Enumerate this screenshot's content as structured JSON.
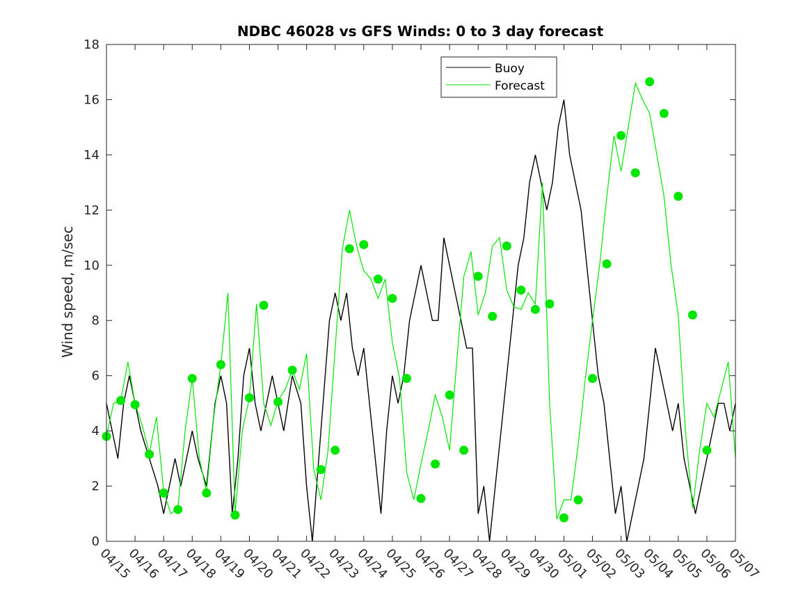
{
  "chart_data": {
    "type": "line",
    "title": "NDBC 46028 vs GFS Winds: 0 to 3 day forecast",
    "xlabel": "",
    "ylabel": "Wind speed, m/sec",
    "ylim": [
      0,
      18
    ],
    "yticks": [
      0,
      2,
      4,
      6,
      8,
      10,
      12,
      14,
      16,
      18
    ],
    "x_tick_labels": [
      "04/15",
      "04/16",
      "04/17",
      "04/18",
      "04/19",
      "04/20",
      "04/21",
      "04/22",
      "04/23",
      "04/24",
      "04/25",
      "04/26",
      "04/27",
      "04/28",
      "04/29",
      "04/30",
      "05/01",
      "05/02",
      "05/03",
      "05/04",
      "05/05",
      "05/06",
      "05/07"
    ],
    "xlim_days": [
      0,
      22
    ],
    "grid": false,
    "legend_position": "top-center",
    "legend": [
      {
        "name": "Buoy",
        "color": "#000000"
      },
      {
        "name": "Forecast",
        "color": "#00e600"
      }
    ],
    "colors": {
      "buoy": "#000000",
      "forecast": "#00e600"
    },
    "series": [
      {
        "name": "Buoy",
        "x": [
          0,
          0.2,
          0.4,
          0.6,
          0.8,
          1.0,
          1.2,
          1.5,
          1.8,
          2.0,
          2.2,
          2.4,
          2.6,
          2.8,
          3.0,
          3.2,
          3.5,
          3.8,
          4.0,
          4.2,
          4.4,
          4.6,
          4.8,
          5.0,
          5.2,
          5.4,
          5.6,
          5.8,
          6.0,
          6.2,
          6.5,
          6.8,
          7.0,
          7.2,
          7.5,
          7.8,
          8.0,
          8.2,
          8.4,
          8.6,
          8.8,
          9.0,
          9.2,
          9.4,
          9.6,
          9.8,
          10.0,
          10.2,
          10.4,
          10.6,
          10.8,
          11.0,
          11.2,
          11.4,
          11.6,
          11.8,
          12.0,
          12.2,
          12.4,
          12.6,
          12.8,
          13.0,
          13.2,
          13.4,
          13.6,
          13.8,
          14.0,
          14.2,
          14.4,
          14.6,
          14.8,
          15.0,
          15.2,
          15.4,
          15.6,
          15.8,
          16.0,
          16.2,
          16.4,
          16.6,
          16.8,
          17.0,
          17.2,
          17.4,
          17.6,
          17.8,
          18.0,
          18.2,
          18.4,
          18.6,
          18.8,
          19.0,
          19.2,
          19.4,
          19.6,
          19.8,
          20.0,
          20.2,
          20.4,
          20.6,
          20.8,
          21.0,
          21.2,
          21.4,
          21.6,
          21.8,
          22.0
        ],
        "values": [
          5,
          4,
          3,
          5,
          6,
          5,
          4,
          3,
          2,
          1,
          2,
          3,
          2,
          3,
          4,
          3,
          2,
          5,
          6,
          5,
          1,
          3,
          6,
          7,
          5,
          4,
          5,
          6,
          5,
          4,
          6,
          5,
          2,
          0,
          4,
          8,
          9,
          8,
          9,
          7,
          6,
          7,
          5,
          3,
          1,
          4,
          6,
          5,
          6,
          8,
          9,
          10,
          9,
          8,
          8,
          11,
          10,
          9,
          8,
          7,
          7,
          1,
          2,
          0,
          2,
          4,
          6,
          8,
          10,
          11,
          13,
          14,
          13,
          12,
          13,
          15,
          16,
          14,
          13,
          12,
          10,
          8,
          6,
          5,
          3,
          1,
          2,
          0,
          1,
          2,
          3,
          5,
          7,
          6,
          5,
          4,
          5,
          3,
          2,
          1,
          2,
          3,
          4,
          5,
          5,
          4,
          5
        ]
      },
      {
        "name": "Forecast",
        "x": [
          0,
          0.25,
          0.5,
          0.75,
          1.0,
          1.25,
          1.5,
          1.75,
          2.0,
          2.25,
          2.5,
          2.75,
          3.0,
          3.25,
          3.5,
          3.75,
          4.0,
          4.25,
          4.5,
          4.75,
          5.0,
          5.25,
          5.5,
          5.75,
          6.0,
          6.25,
          6.5,
          6.75,
          7.0,
          7.25,
          7.5,
          7.75,
          8.0,
          8.25,
          8.5,
          8.75,
          9.0,
          9.25,
          9.5,
          9.75,
          10.0,
          10.25,
          10.5,
          10.75,
          11.0,
          11.25,
          11.5,
          11.75,
          12.0,
          12.25,
          12.5,
          12.75,
          13.0,
          13.25,
          13.5,
          13.75,
          14.0,
          14.25,
          14.5,
          14.75,
          15.0,
          15.25,
          15.5,
          15.75,
          16.0,
          16.25,
          16.5,
          16.75,
          17.0,
          17.25,
          17.5,
          17.75,
          18.0,
          18.25,
          18.5,
          18.75,
          19.0,
          19.25,
          19.5,
          19.75,
          20.0,
          20.25,
          20.5,
          20.75,
          21.0,
          21.25,
          21.5,
          21.75,
          22.0
        ],
        "values": [
          3.8,
          5.0,
          5.1,
          6.5,
          5.0,
          4.2,
          3.2,
          4.5,
          1.8,
          1.0,
          1.2,
          4.0,
          5.9,
          3.0,
          1.8,
          4.5,
          6.4,
          9.0,
          1.0,
          4.0,
          5.2,
          8.6,
          5.0,
          4.2,
          5.1,
          5.5,
          6.2,
          5.5,
          6.8,
          2.6,
          1.5,
          3.3,
          7.0,
          10.6,
          12.0,
          10.7,
          9.8,
          9.5,
          8.8,
          9.5,
          7.2,
          5.9,
          2.5,
          1.5,
          2.8,
          4.0,
          5.3,
          4.5,
          3.3,
          6.5,
          9.6,
          10.5,
          8.2,
          9.0,
          10.7,
          11.0,
          9.1,
          8.5,
          8.4,
          9.0,
          8.6,
          13.0,
          5.0,
          0.8,
          1.5,
          1.5,
          3.5,
          5.9,
          8.0,
          10.0,
          12.5,
          14.7,
          13.4,
          15.0,
          16.6,
          16.0,
          15.5,
          14.0,
          12.5,
          10.0,
          8.2,
          4.0,
          1.2,
          3.3,
          5.0,
          4.5,
          5.5,
          6.5,
          3.0
        ],
        "markers": {
          "x": [
            0,
            0.5,
            1.0,
            1.5,
            2.0,
            2.5,
            3.0,
            3.5,
            4.0,
            4.5,
            5.0,
            5.5,
            6.0,
            6.5,
            7.5,
            8.0,
            8.5,
            9.0,
            9.5,
            10.0,
            10.5,
            11.0,
            11.5,
            12.0,
            12.5,
            13.0,
            13.5,
            14.0,
            14.5,
            15.0,
            15.5,
            16.0,
            16.5,
            17.0,
            17.5,
            18.0,
            18.5,
            19.0,
            19.5,
            20.0,
            20.5,
            21.0
          ],
          "values": [
            3.8,
            5.1,
            4.95,
            3.15,
            1.75,
            1.15,
            5.9,
            1.75,
            6.4,
            0.95,
            5.2,
            8.55,
            5.05,
            6.2,
            2.6,
            3.3,
            10.6,
            10.75,
            9.5,
            8.8,
            5.9,
            1.55,
            2.8,
            5.3,
            3.3,
            9.6,
            8.15,
            10.7,
            9.1,
            8.4,
            8.6,
            0.85,
            1.5,
            5.9,
            10.05,
            14.7,
            13.35,
            16.65,
            15.5,
            12.5,
            8.2,
            3.3
          ]
        }
      }
    ]
  }
}
